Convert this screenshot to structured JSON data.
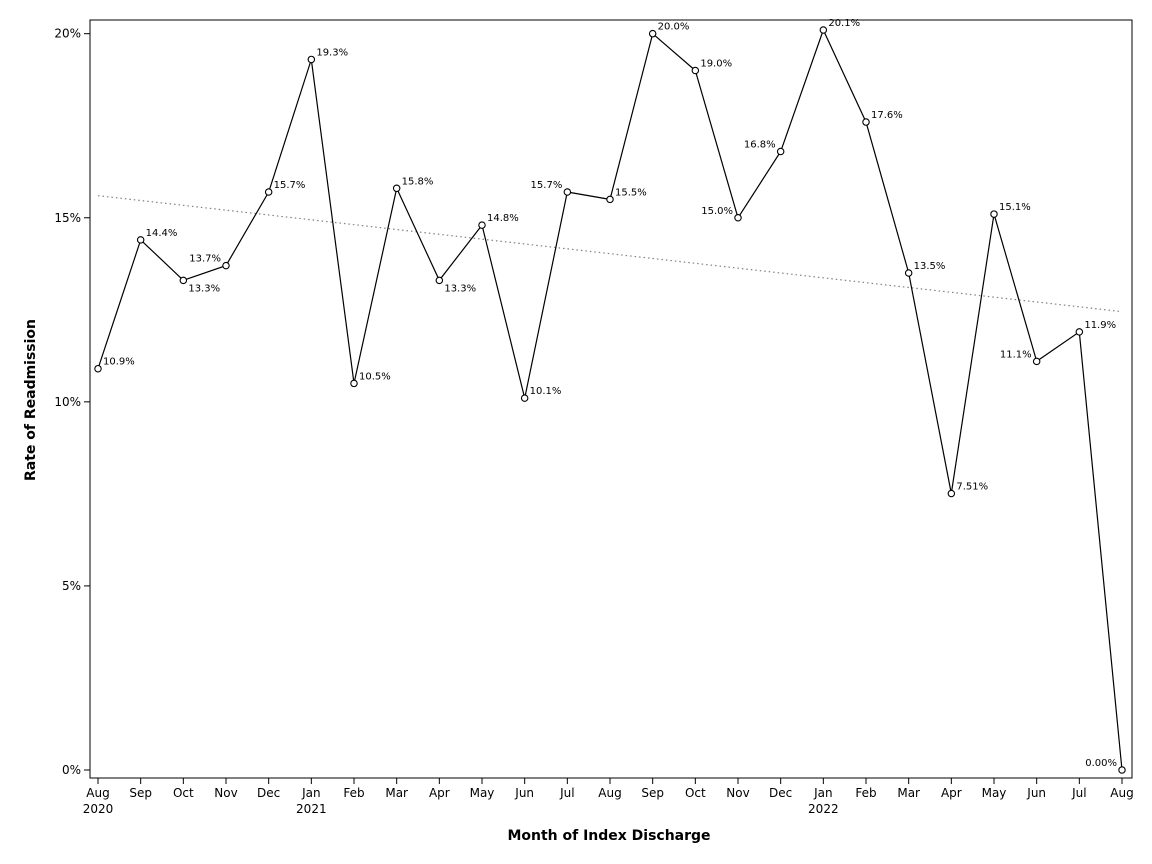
{
  "chart_data": {
    "type": "line",
    "title": "",
    "xlabel": "Month of Index Discharge",
    "ylabel": "Rate of Readmission",
    "ylim": [
      0,
      20.1
    ],
    "yticks": [
      {
        "value": 0,
        "label": "0%"
      },
      {
        "value": 5,
        "label": "5%"
      },
      {
        "value": 10,
        "label": "10%"
      },
      {
        "value": 15,
        "label": "15%"
      },
      {
        "value": 20,
        "label": "20%"
      }
    ],
    "categories": [
      {
        "month": "Aug",
        "year": "2020"
      },
      {
        "month": "Sep",
        "year": ""
      },
      {
        "month": "Oct",
        "year": ""
      },
      {
        "month": "Nov",
        "year": ""
      },
      {
        "month": "Dec",
        "year": ""
      },
      {
        "month": "Jan",
        "year": "2021"
      },
      {
        "month": "Feb",
        "year": ""
      },
      {
        "month": "Mar",
        "year": ""
      },
      {
        "month": "Apr",
        "year": ""
      },
      {
        "month": "May",
        "year": ""
      },
      {
        "month": "Jun",
        "year": ""
      },
      {
        "month": "Jul",
        "year": ""
      },
      {
        "month": "Aug",
        "year": ""
      },
      {
        "month": "Sep",
        "year": ""
      },
      {
        "month": "Oct",
        "year": ""
      },
      {
        "month": "Nov",
        "year": ""
      },
      {
        "month": "Dec",
        "year": ""
      },
      {
        "month": "Jan",
        "year": "2022"
      },
      {
        "month": "Feb",
        "year": ""
      },
      {
        "month": "Mar",
        "year": ""
      },
      {
        "month": "Apr",
        "year": ""
      },
      {
        "month": "May",
        "year": ""
      },
      {
        "month": "Jun",
        "year": ""
      },
      {
        "month": "Jul",
        "year": ""
      },
      {
        "month": "Aug",
        "year": ""
      }
    ],
    "series": [
      {
        "values": [
          10.9,
          14.4,
          13.3,
          13.7,
          15.7,
          19.3,
          10.5,
          15.8,
          13.3,
          14.8,
          10.1,
          15.7,
          15.5,
          20.0,
          19.0,
          15.0,
          16.8,
          20.1,
          17.6,
          13.5,
          7.51,
          15.1,
          11.1,
          11.9,
          0.0
        ],
        "labels": [
          "10.9%",
          "14.4%",
          "13.3%",
          "13.7%",
          "15.7%",
          "19.3%",
          "10.5%",
          "15.8%",
          "13.3%",
          "14.8%",
          "10.1%",
          "15.7%",
          "15.5%",
          "20.0%",
          "19.0%",
          "15.0%",
          "16.8%",
          "20.1%",
          "17.6%",
          "13.5%",
          "7.51%",
          "15.1%",
          "11.1%",
          "11.9%",
          "0.00%"
        ],
        "label_side": [
          "ur",
          "ur",
          "dr",
          "ul",
          "ur",
          "ur",
          "ur",
          "ur",
          "dr",
          "ur",
          "ur",
          "ul",
          "ur",
          "ur",
          "ur",
          "ul",
          "ul",
          "ur",
          "ur",
          "ur",
          "ur",
          "ur",
          "ul",
          "ur",
          "ul"
        ],
        "color": "#000000",
        "marker": "open-circle"
      }
    ],
    "trendline": {
      "start": 15.6,
      "end": 12.45,
      "style": "dotted",
      "color": "#808080"
    },
    "grid": false,
    "legend": "none"
  }
}
